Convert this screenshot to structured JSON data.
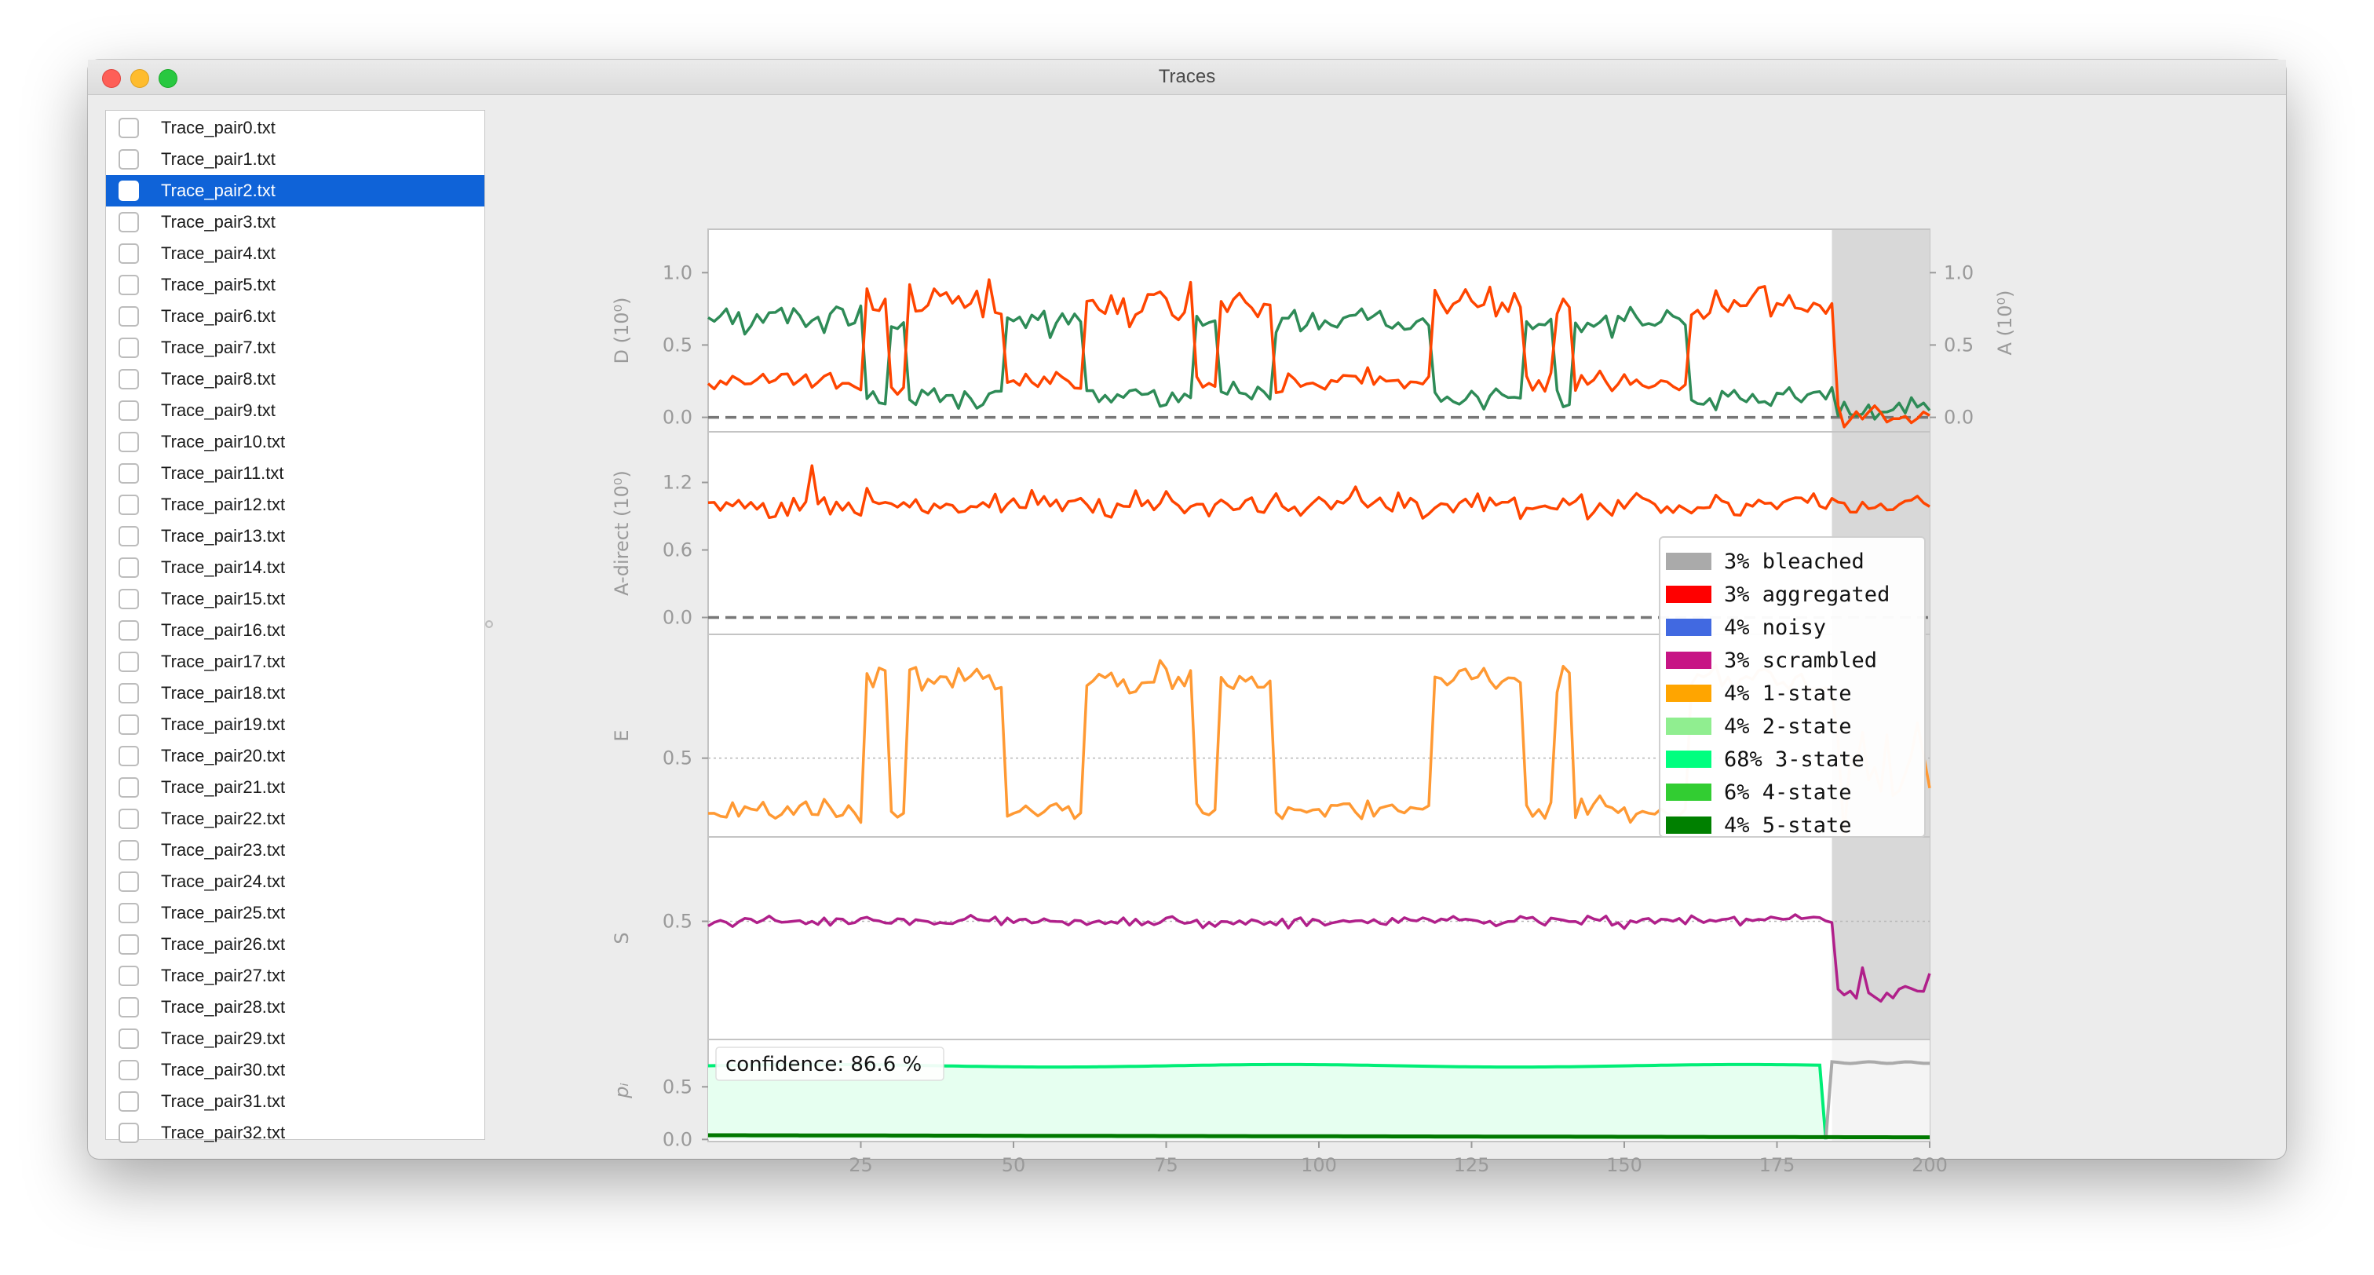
{
  "window": {
    "title": "Traces"
  },
  "file_list": {
    "items": [
      "Trace_pair0.txt",
      "Trace_pair1.txt",
      "Trace_pair2.txt",
      "Trace_pair3.txt",
      "Trace_pair4.txt",
      "Trace_pair5.txt",
      "Trace_pair6.txt",
      "Trace_pair7.txt",
      "Trace_pair8.txt",
      "Trace_pair9.txt",
      "Trace_pair10.txt",
      "Trace_pair11.txt",
      "Trace_pair12.txt",
      "Trace_pair13.txt",
      "Trace_pair14.txt",
      "Trace_pair15.txt",
      "Trace_pair16.txt",
      "Trace_pair17.txt",
      "Trace_pair18.txt",
      "Trace_pair19.txt",
      "Trace_pair20.txt",
      "Trace_pair21.txt",
      "Trace_pair22.txt",
      "Trace_pair23.txt",
      "Trace_pair24.txt",
      "Trace_pair25.txt",
      "Trace_pair26.txt",
      "Trace_pair27.txt",
      "Trace_pair28.txt",
      "Trace_pair29.txt",
      "Trace_pair30.txt",
      "Trace_pair31.txt",
      "Trace_pair32.txt"
    ],
    "selected_index": 2
  },
  "chart_data": {
    "type": "line",
    "x_range": [
      0,
      200
    ],
    "x_ticks": [
      25,
      50,
      75,
      100,
      125,
      150,
      175,
      200
    ],
    "bleach_start": 184,
    "confidence_text": "confidence: 86.6 %",
    "panels": [
      {
        "key": "DA",
        "ylabel": "D (10⁰)",
        "ylabel_right": "A (10⁰)",
        "ylim": [
          -0.1,
          1.3
        ],
        "yticks": [
          "0.0",
          "0.5",
          "1.0"
        ],
        "yticks_right": [
          "0.0",
          "0.5",
          "1.0"
        ],
        "zero_line": true,
        "series": [
          {
            "name": "D",
            "color": "#2e8b57"
          },
          {
            "name": "A",
            "color": "#ff4500"
          }
        ]
      },
      {
        "key": "ADIR",
        "ylabel": "A-direct (10⁰)",
        "ylim": [
          -0.15,
          1.65
        ],
        "yticks": [
          "0.0",
          "0.6",
          "1.2"
        ],
        "zero_line": true,
        "series": [
          {
            "name": "A-direct",
            "color": "#ff4500"
          }
        ]
      },
      {
        "key": "E",
        "ylabel": "E",
        "ylim": [
          0.15,
          1.05
        ],
        "yticks": [
          "0.5"
        ],
        "dotted_line": 0.5,
        "series": [
          {
            "name": "E",
            "color": "#ff9933"
          }
        ]
      },
      {
        "key": "S",
        "ylabel": "S",
        "ylim": [
          -0.2,
          1.0
        ],
        "yticks": [
          "0.5"
        ],
        "dotted_line": 0.5,
        "series": [
          {
            "name": "S",
            "color": "#b0208a"
          }
        ]
      },
      {
        "key": "P",
        "ylabel": "pᵢ",
        "ylim": [
          -0.02,
          0.95
        ],
        "yticks": [
          "0.0",
          "0.5"
        ],
        "series": [
          {
            "name": "3-state",
            "color": "#00ee77",
            "value": 0.7
          },
          {
            "name": "bleached",
            "color": "#aaaaaa",
            "value": 0.73
          },
          {
            "name": "5-state",
            "color": "#007a00",
            "value": 0.03
          }
        ]
      }
    ],
    "legend": {
      "position": "right",
      "entries": [
        {
          "label": "3% bleached",
          "color": "#aaaaaa"
        },
        {
          "label": "3% aggregated",
          "color": "#ff0000"
        },
        {
          "label": "4% noisy",
          "color": "#4169e1"
        },
        {
          "label": "3% scrambled",
          "color": "#c71585"
        },
        {
          "label": "4% 1-state",
          "color": "#ffa500"
        },
        {
          "label": "4% 2-state",
          "color": "#90ee90"
        },
        {
          "label": "68% 3-state",
          "color": "#00ff7f"
        },
        {
          "label": "6% 4-state",
          "color": "#32cd32"
        },
        {
          "label": "4% 5-state",
          "color": "#008000"
        }
      ]
    }
  }
}
